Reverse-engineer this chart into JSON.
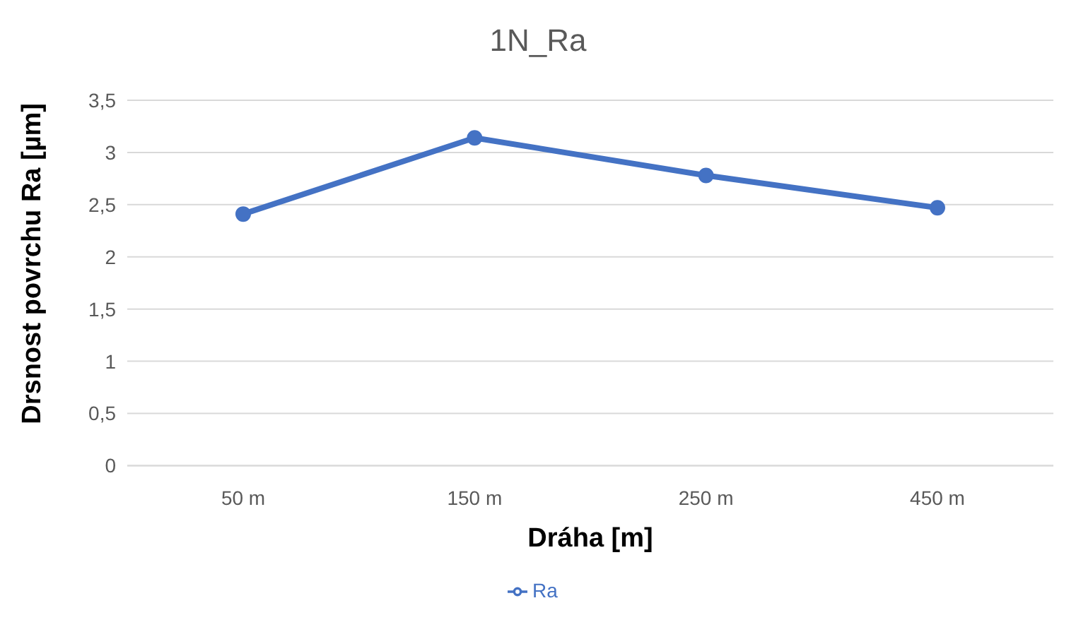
{
  "chart_data": {
    "type": "line",
    "title": "1N_Ra",
    "xlabel": "Dráha [m]",
    "ylabel": "Drsnost povrchu Ra [µm]",
    "categories": [
      "50 m",
      "150 m",
      "250 m",
      "450 m"
    ],
    "series": [
      {
        "name": "Ra",
        "color": "#4472c4",
        "values": [
          2.41,
          3.14,
          2.78,
          2.47
        ]
      }
    ],
    "ylim": [
      0,
      3.5
    ],
    "yticks": [
      0,
      {
        "value": 0.5,
        "label": "0,5"
      },
      1,
      {
        "value": 1.5,
        "label": "1,5"
      },
      2,
      {
        "value": 2.5,
        "label": "2,5"
      },
      3,
      {
        "value": 3.5,
        "label": "3,5"
      }
    ],
    "grid": "y",
    "legend": "bottom",
    "marker": "circle",
    "line_style": "solid"
  }
}
